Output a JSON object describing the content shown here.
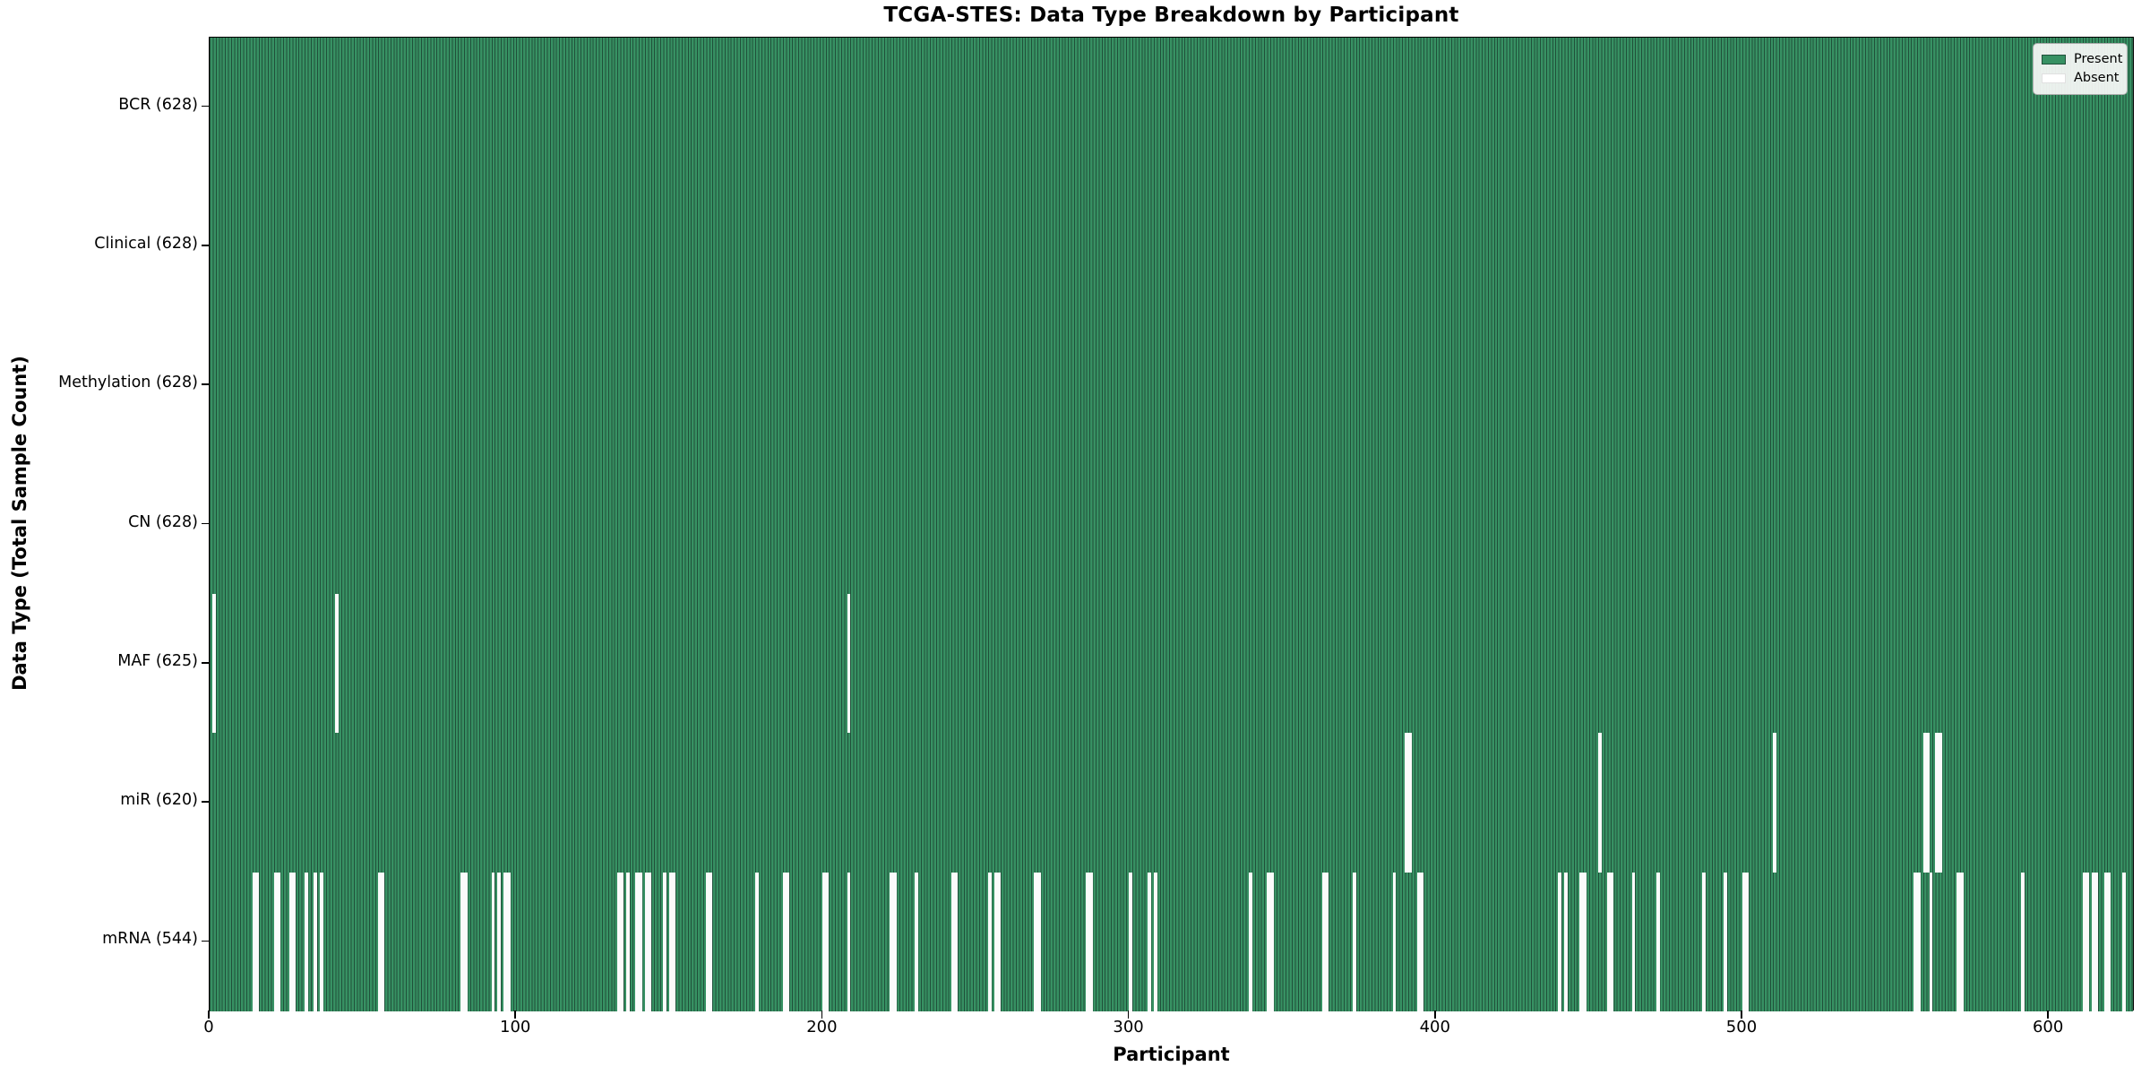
{
  "title": "TCGA-STES: Data Type Breakdown by Participant",
  "xlabel": "Participant",
  "ylabel": "Data Type (Total Sample Count)",
  "legend": {
    "present_label": "Present",
    "absent_label": "Absent"
  },
  "colors": {
    "present_fill": "#379163",
    "bar_edge": "#20503a",
    "absent_fill": "#fbfbfb",
    "row_divider": "#141414",
    "spine": "#000000"
  },
  "chart_data": {
    "type": "heatmap",
    "title": "TCGA-STES: Data Type Breakdown by Participant",
    "xlabel": "Participant",
    "ylabel": "Data Type (Total Sample Count)",
    "n_participants": 628,
    "x_ticks": [
      0,
      100,
      200,
      300,
      400,
      500,
      600
    ],
    "legend": [
      "Present",
      "Absent"
    ],
    "legend_position": "upper right",
    "grid": false,
    "rows": [
      {
        "label": "BCR (628)",
        "name": "BCR",
        "present_count": 628,
        "absent_participants": []
      },
      {
        "label": "Clinical (628)",
        "name": "Clinical",
        "present_count": 628,
        "absent_participants": []
      },
      {
        "label": "Methylation (628)",
        "name": "Methylation",
        "present_count": 628,
        "absent_participants": []
      },
      {
        "label": "CN (628)",
        "name": "CN",
        "present_count": 628,
        "absent_participants": []
      },
      {
        "label": "MAF (625)",
        "name": "MAF",
        "present_count": 625,
        "absent_participants": [
          1,
          41,
          208
        ]
      },
      {
        "label": "miR (620)",
        "name": "miR",
        "present_count": 620,
        "absent_participants": [
          390,
          391,
          453,
          510,
          559,
          560,
          563,
          564
        ]
      },
      {
        "label": "mRNA (544)",
        "name": "mRNA",
        "present_count": 544,
        "absent_participants": [
          14,
          15,
          21,
          22,
          26,
          27,
          31,
          34,
          36,
          55,
          56,
          82,
          83,
          92,
          94,
          96,
          97,
          133,
          134,
          136,
          139,
          140,
          142,
          143,
          148,
          150,
          151,
          162,
          163,
          178,
          187,
          188,
          200,
          201,
          208,
          222,
          223,
          230,
          242,
          243,
          254,
          256,
          257,
          269,
          270,
          286,
          287,
          300,
          306,
          308,
          339,
          345,
          346,
          363,
          364,
          373,
          386,
          394,
          395,
          440,
          442,
          447,
          448,
          456,
          457,
          464,
          472,
          487,
          494,
          500,
          501,
          556,
          557,
          561,
          570,
          571,
          591,
          611,
          612,
          614,
          615,
          618,
          619,
          624
        ]
      }
    ]
  }
}
